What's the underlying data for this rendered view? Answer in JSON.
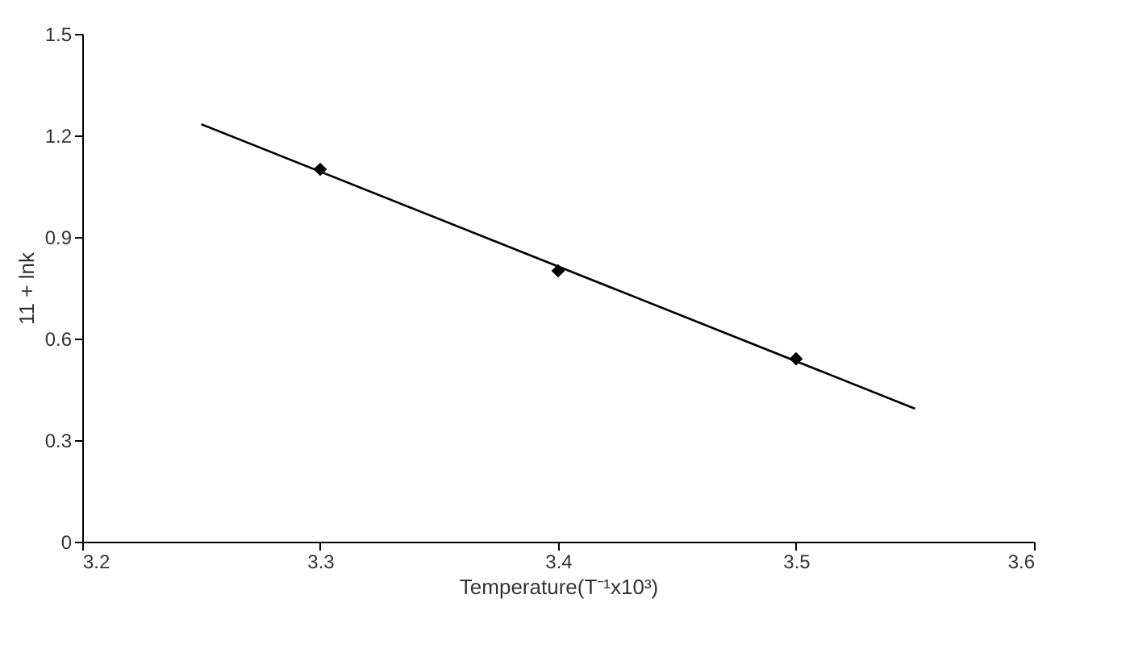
{
  "chart_data": {
    "type": "scatter",
    "xlabel": "Temperature(T⁻¹x10³)",
    "ylabel": "11 + lnk",
    "xlim": [
      3.2,
      3.6
    ],
    "xticks": [
      3.2,
      3.3,
      3.4,
      3.5,
      3.6
    ],
    "ylim": [
      0,
      1.5
    ],
    "yticks": [
      0,
      0.3,
      0.6,
      0.9,
      1.2,
      1.5
    ],
    "grid": false,
    "series": [
      {
        "type": "scatter",
        "color": "#000000",
        "marker": "diamond",
        "x": [
          3.3,
          3.4,
          3.5
        ],
        "values": [
          1.1,
          0.8,
          0.54
        ]
      },
      {
        "type": "line",
        "color": "#000000",
        "marker": "none",
        "line_style": "solid",
        "x": [
          3.25,
          3.55
        ],
        "values": [
          1.233,
          0.393
        ]
      }
    ]
  }
}
